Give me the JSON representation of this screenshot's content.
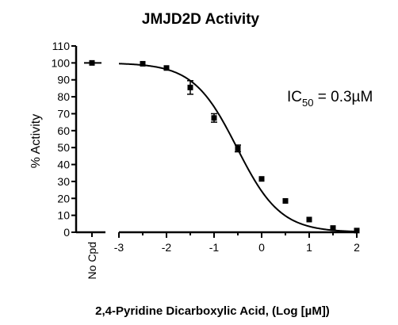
{
  "chart_data": {
    "type": "scatter",
    "title": "JMJD2D Activity",
    "ylabel": "% Activity",
    "xlabel": "2,4-Pyridine Dicarboxylic Acid, (Log [µM])",
    "annotation": {
      "prefix": "IC",
      "subscript": "50",
      "suffix": " = 0.3µM"
    },
    "xlim": [
      -3,
      2
    ],
    "ylim": [
      0,
      110
    ],
    "x_ticks": [
      -3,
      -2,
      -1,
      0,
      1,
      2
    ],
    "y_ticks": [
      0,
      10,
      20,
      30,
      40,
      50,
      60,
      70,
      80,
      90,
      100,
      110
    ],
    "control": {
      "label": "No Cpd",
      "value": 100
    },
    "series": [
      {
        "points": [
          {
            "x": -2.5,
            "y": 99.5,
            "err": 0
          },
          {
            "x": -2.0,
            "y": 97,
            "err": 0
          },
          {
            "x": -1.5,
            "y": 85.5,
            "err": 4
          },
          {
            "x": -1.0,
            "y": 67.5,
            "err": 2.5
          },
          {
            "x": -0.5,
            "y": 49.5,
            "err": 2
          },
          {
            "x": 0.0,
            "y": 31.5,
            "err": 0
          },
          {
            "x": 0.5,
            "y": 18.5,
            "err": 0
          },
          {
            "x": 1.0,
            "y": 7.5,
            "err": 0
          },
          {
            "x": 1.5,
            "y": 2.5,
            "err": 0
          },
          {
            "x": 2.0,
            "y": 1.0,
            "err": 0
          }
        ],
        "fit": {
          "top": 100,
          "bottom": 0,
          "log_ic50": -0.52,
          "hill": 0.95
        },
        "color": "#000000"
      }
    ],
    "grid": false,
    "legend": "none"
  }
}
